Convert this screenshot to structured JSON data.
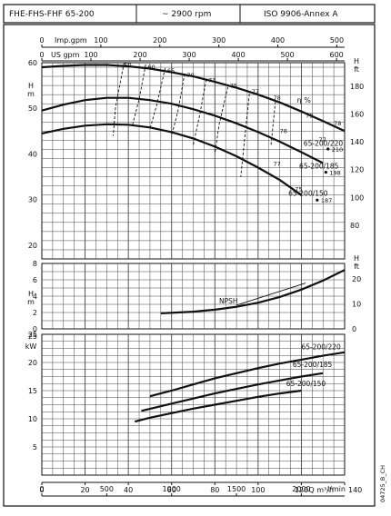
{
  "header": {
    "model": "FHE-FHS-FHF 65-200",
    "speed": "~ 2900 rpm",
    "standard": "ISO 9906-Annex A"
  },
  "chart_data": [
    {
      "type": "line",
      "panel": "head",
      "top_axis_imp": {
        "label": "Imp.gpm",
        "ticks": [
          "0",
          "100",
          "200",
          "300",
          "400",
          "500"
        ]
      },
      "top_axis_us": {
        "label": "US gpm",
        "ticks": [
          "0",
          "100",
          "200",
          "300",
          "400",
          "500",
          "600"
        ]
      },
      "y_left": {
        "label": "H m",
        "ticks": [
          "20",
          "30",
          "40",
          "50",
          "60"
        ],
        "range": [
          17,
          60
        ]
      },
      "y_right": {
        "label": "H ft",
        "ticks": [
          "80",
          "100",
          "120",
          "140",
          "160",
          "180"
        ]
      },
      "x_range": [
        0,
        140
      ],
      "series": [
        {
          "name": "65-200/220",
          "x": [
            0,
            10,
            20,
            30,
            40,
            50,
            60,
            70,
            80,
            90,
            100,
            110,
            120,
            130,
            140
          ],
          "values": [
            59,
            59.3,
            59.5,
            59.5,
            59.2,
            58.7,
            57.9,
            57,
            55.8,
            54.5,
            53,
            51.3,
            49.3,
            47.2,
            45
          ]
        },
        {
          "name": "65-200/185",
          "x": [
            0,
            10,
            20,
            30,
            40,
            50,
            60,
            70,
            80,
            90,
            100,
            110,
            120,
            130
          ],
          "values": [
            49.5,
            50.8,
            51.8,
            52.3,
            52.3,
            51.8,
            51,
            49.8,
            48.4,
            46.7,
            44.8,
            42.7,
            40.4,
            38
          ]
        },
        {
          "name": "65-200/150",
          "x": [
            0,
            10,
            20,
            30,
            40,
            50,
            60,
            70,
            80,
            90,
            100,
            110,
            120
          ],
          "values": [
            44.5,
            45.5,
            46.2,
            46.5,
            46.4,
            45.8,
            44.8,
            43.4,
            41.6,
            39.5,
            37,
            34.3,
            31
          ]
        }
      ],
      "efficiency_label": "η %",
      "efficiency_lines": [
        "50",
        "60",
        "65",
        "70",
        "73",
        "75",
        "77",
        "78",
        "79",
        "78",
        "78",
        "77",
        "77",
        "75"
      ],
      "curve_labels": [
        "65-200/220",
        "65-200/185",
        "65-200/150"
      ],
      "curve_diameters": [
        "210",
        "198",
        "187"
      ]
    },
    {
      "type": "line",
      "panel": "npsh",
      "label": "NPSH",
      "y_left": {
        "label": "H m",
        "ticks": [
          "0",
          "2",
          "4",
          "6",
          "8"
        ],
        "range": [
          0,
          8
        ]
      },
      "y_right": {
        "label": "H ft",
        "ticks": [
          "0",
          "10",
          "20"
        ]
      },
      "x_range": [
        0,
        140
      ],
      "series": [
        {
          "name": "NPSH",
          "x": [
            55,
            70,
            80,
            90,
            100,
            110,
            120,
            130,
            140
          ],
          "values": [
            1.9,
            2.1,
            2.35,
            2.7,
            3.2,
            3.9,
            4.8,
            5.9,
            7.2
          ]
        }
      ]
    },
    {
      "type": "line",
      "panel": "power",
      "y_left": {
        "label": "kW",
        "ticks": [
          "5",
          "10",
          "15",
          "20",
          "25"
        ],
        "range": [
          0,
          25
        ]
      },
      "x_range": [
        0,
        140
      ],
      "bottom_axis_m3h": {
        "label": "Q m³/h",
        "ticks": [
          "0",
          "20",
          "40",
          "60",
          "80",
          "100",
          "120",
          "140"
        ]
      },
      "bottom_axis_lmin": {
        "label": "l/min",
        "ticks": [
          "0",
          "500",
          "1000",
          "1500",
          "2000"
        ]
      },
      "series": [
        {
          "name": "65-200/220",
          "x": [
            50,
            60,
            70,
            80,
            90,
            100,
            110,
            120,
            130,
            140
          ],
          "values": [
            14,
            15,
            16.1,
            17.2,
            18.1,
            19,
            19.8,
            20.5,
            21.2,
            21.8
          ]
        },
        {
          "name": "65-200/185",
          "x": [
            46,
            60,
            70,
            80,
            90,
            100,
            110,
            120,
            130
          ],
          "values": [
            11.4,
            12.7,
            13.6,
            14.5,
            15.3,
            16.1,
            16.8,
            17.5,
            18.1
          ]
        },
        {
          "name": "65-200/150",
          "x": [
            43,
            50,
            60,
            70,
            80,
            90,
            100,
            110,
            120
          ],
          "values": [
            9.5,
            10.2,
            11,
            11.8,
            12.5,
            13.2,
            13.9,
            14.5,
            15
          ]
        }
      ]
    }
  ],
  "footer": {
    "code": "04725_B_CH"
  }
}
